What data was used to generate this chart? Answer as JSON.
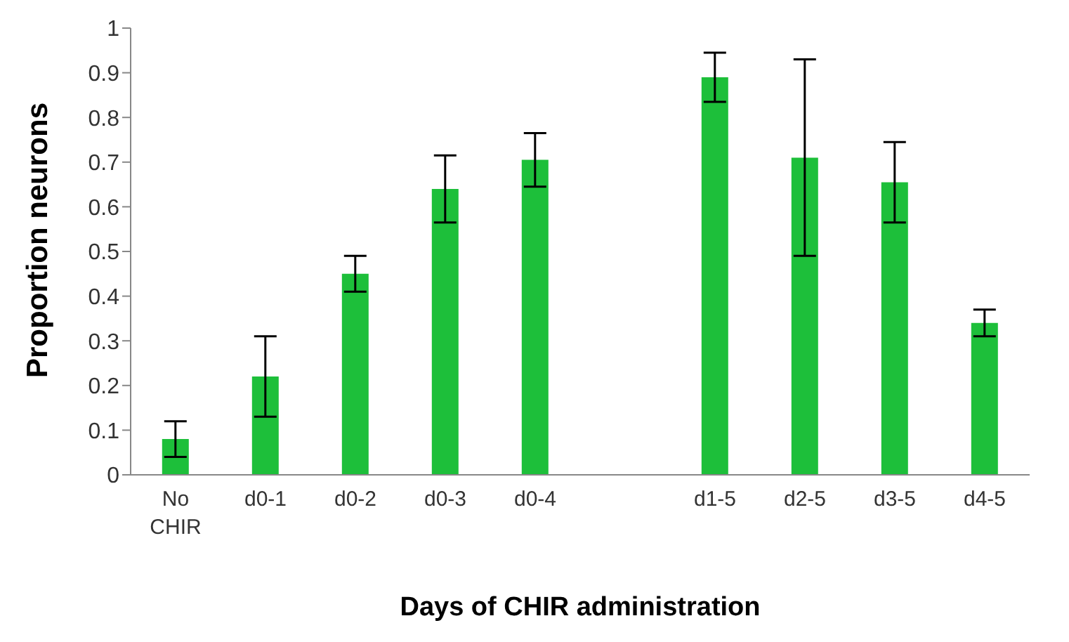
{
  "chart_data": {
    "type": "bar",
    "xlabel": "Days of CHIR administration",
    "ylabel": "Proportion neurons",
    "categories": [
      "No CHIR",
      "d0-1",
      "d0-2",
      "d0-3",
      "d0-4",
      null,
      "d1-5",
      "d2-5",
      "d3-5",
      "d4-5"
    ],
    "values": [
      0.08,
      0.22,
      0.45,
      0.64,
      0.705,
      null,
      0.89,
      0.71,
      0.655,
      0.34
    ],
    "errors": [
      0.04,
      0.09,
      0.04,
      0.075,
      0.06,
      null,
      0.055,
      0.22,
      0.09,
      0.03
    ],
    "color": "#1dbf3a",
    "ylim": [
      0,
      1
    ],
    "yticks": [
      0,
      0.1,
      0.2,
      0.3,
      0.4,
      0.5,
      0.6,
      0.7,
      0.8,
      0.9,
      1
    ],
    "grid": false,
    "legend": false
  }
}
